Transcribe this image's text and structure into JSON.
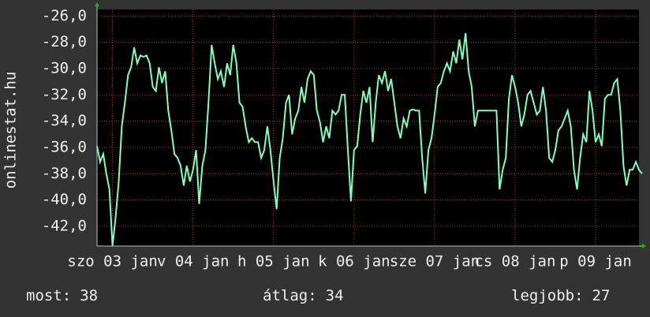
{
  "chart_data": {
    "type": "line",
    "y_label": "onlinestat.hu",
    "xlim": [
      0,
      175
    ],
    "xticks": [
      {
        "value": 5,
        "label": "szo 03 jan"
      },
      {
        "value": 31,
        "label": "v 04 jan"
      },
      {
        "value": 57,
        "label": "h 05 jan"
      },
      {
        "value": 83,
        "label": "k 06 jan"
      },
      {
        "value": 109,
        "label": "sze 07 jan"
      },
      {
        "value": 135,
        "label": "cs 08 jan"
      },
      {
        "value": 161,
        "label": "p 09 jan"
      }
    ],
    "ylim": [
      -43.5,
      -25.5
    ],
    "yticks": [
      {
        "value": -26,
        "label": "-26,0"
      },
      {
        "value": -28,
        "label": "-28,0"
      },
      {
        "value": -30,
        "label": "-30,0"
      },
      {
        "value": -32,
        "label": "-32,0"
      },
      {
        "value": -34,
        "label": "-34,0"
      },
      {
        "value": -36,
        "label": "-36,0"
      },
      {
        "value": -38,
        "label": "-38,0"
      },
      {
        "value": -40,
        "label": "-40,0"
      },
      {
        "value": -42,
        "label": "-42,0"
      }
    ],
    "grid": true,
    "series": [
      {
        "color": "#80ffc0",
        "values": [
          -35.9,
          -37.1,
          -36.5,
          -38.0,
          -39.2,
          -43.5,
          -41.3,
          -38.6,
          -34.4,
          -32.6,
          -30.5,
          -29.9,
          -28.4,
          -29.6,
          -29.0,
          -29.1,
          -29.0,
          -29.6,
          -31.4,
          -31.7,
          -29.9,
          -31.1,
          -30.2,
          -33.2,
          -34.7,
          -36.5,
          -36.8,
          -37.4,
          -38.9,
          -37.4,
          -38.6,
          -37.7,
          -36.2,
          -40.3,
          -37.4,
          -36.2,
          -32.6,
          -28.2,
          -29.6,
          -30.8,
          -30.2,
          -31.4,
          -29.6,
          -30.5,
          -28.2,
          -29.6,
          -32.6,
          -32.9,
          -34.4,
          -35.6,
          -35.3,
          -35.6,
          -35.6,
          -36.8,
          -36.2,
          -34.4,
          -36.2,
          -38.6,
          -40.7,
          -36.8,
          -35.3,
          -32.6,
          -32.0,
          -35.0,
          -33.8,
          -33.2,
          -31.4,
          -32.6,
          -30.8,
          -30.2,
          -30.5,
          -33.2,
          -34.1,
          -35.6,
          -34.4,
          -35.3,
          -33.2,
          -33.5,
          -33.2,
          -32.0,
          -32.0,
          -36.2,
          -40.1,
          -36.2,
          -35.9,
          -33.5,
          -31.7,
          -32.6,
          -31.4,
          -35.6,
          -32.6,
          -30.5,
          -31.1,
          -30.2,
          -31.7,
          -30.8,
          -32.6,
          -34.4,
          -35.3,
          -33.8,
          -34.4,
          -33.2,
          -33.1,
          -33.2,
          -33.2,
          -36.8,
          -39.5,
          -36.2,
          -35.3,
          -33.5,
          -31.4,
          -31.1,
          -30.2,
          -29.6,
          -30.2,
          -28.7,
          -29.6,
          -27.8,
          -29.3,
          -27.3,
          -30.2,
          -31.4,
          -34.4,
          -33.2,
          -33.2,
          -33.2,
          -33.2,
          -33.2,
          -33.2,
          -33.2,
          -39.2,
          -37.7,
          -36.8,
          -32.3,
          -30.5,
          -31.4,
          -32.6,
          -34.4,
          -33.5,
          -32.0,
          -31.7,
          -32.6,
          -33.5,
          -33.2,
          -31.4,
          -33.2,
          -36.8,
          -37.1,
          -36.2,
          -34.7,
          -34.4,
          -33.8,
          -33.2,
          -34.4,
          -37.7,
          -39.2,
          -36.8,
          -35.0,
          -35.6,
          -31.7,
          -33.2,
          -35.6,
          -35.0,
          -35.9,
          -32.3,
          -32.0,
          -32.0,
          -31.1,
          -30.8,
          -33.2,
          -37.4,
          -38.9,
          -37.7,
          -37.7,
          -37.1,
          -37.7,
          -38.0
        ]
      }
    ],
    "stats": [
      {
        "label": "most:",
        "value": 38
      },
      {
        "label": "átlag:",
        "value": 34
      },
      {
        "label": "legjobb:",
        "value": 27
      }
    ]
  }
}
